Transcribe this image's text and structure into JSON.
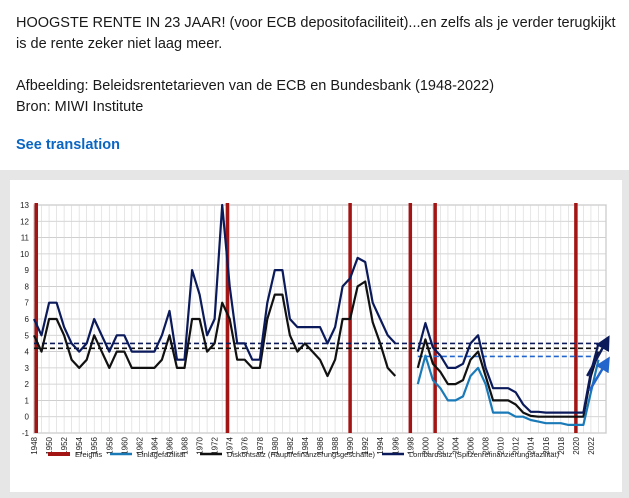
{
  "post": {
    "text": "HOOGSTE RENTE IN 23 JAAR! (voor ECB depositofaciliteit)...en zelfs als je verder terugkijkt is de rente zeker niet laag meer.\n\nAfbeelding: Beleidsrentetarieven van de ECB en Bundesbank (1948-2022)\nBron: MIWI Institute",
    "see_translation": "See translation"
  },
  "chart_data": {
    "type": "line",
    "title": "",
    "xlabel": "",
    "ylabel": "",
    "xlim": [
      1948,
      2024
    ],
    "ylim": [
      -1,
      13
    ],
    "y_ticks": [
      -1,
      0,
      1,
      2,
      3,
      4,
      5,
      6,
      7,
      8,
      9,
      10,
      11,
      12,
      13
    ],
    "x_ticks": [
      1948,
      1950,
      1952,
      1954,
      1956,
      1958,
      1960,
      1962,
      1964,
      1966,
      1968,
      1970,
      1972,
      1974,
      1976,
      1978,
      1980,
      1982,
      1984,
      1986,
      1988,
      1990,
      1992,
      1994,
      1996,
      1998,
      2000,
      2002,
      2004,
      2006,
      2008,
      2010,
      2012,
      2014,
      2016,
      2018,
      2020,
      2022
    ],
    "grid": true,
    "events": [
      1948.3,
      1973.7,
      1990,
      1998,
      2001.3,
      2020
    ],
    "series": [
      {
        "name": "Diskontsatz (Hauptrefinanzerungsgeschäfte)",
        "color": "#111111",
        "x": [
          1948,
          1949,
          1950,
          1951,
          1952,
          1953,
          1954,
          1955,
          1956,
          1957,
          1958,
          1959,
          1960,
          1961,
          1962,
          1963,
          1964,
          1965,
          1966,
          1967,
          1968,
          1969,
          1970,
          1971,
          1972,
          1973,
          1974,
          1975,
          1976,
          1977,
          1978,
          1979,
          1980,
          1981,
          1982,
          1983,
          1984,
          1985,
          1986,
          1987,
          1988,
          1989,
          1990,
          1991,
          1992,
          1993,
          1994,
          1995,
          1996
        ],
        "values": [
          5,
          4,
          6,
          6,
          5,
          3.5,
          3,
          3.5,
          5,
          4,
          3,
          4,
          4,
          3,
          3,
          3,
          3,
          3.5,
          5,
          3,
          3,
          6,
          6,
          4,
          4.5,
          7,
          6,
          3.5,
          3.5,
          3,
          3,
          6,
          7.5,
          7.5,
          5,
          4,
          4.5,
          4,
          3.5,
          2.5,
          3.5,
          6,
          6,
          8,
          8.3,
          5.8,
          4.5,
          3,
          2.5
        ]
      },
      {
        "name": "Diskontsatz (Hauptrefinanzerungsgeschäfte)",
        "color": "#111111",
        "x": [
          1999,
          2000,
          2001,
          2002,
          2003,
          2004,
          2005,
          2006,
          2007,
          2008,
          2009,
          2010,
          2011,
          2012,
          2013,
          2014,
          2015,
          2016,
          2017,
          2018,
          2019,
          2020,
          2021,
          2022,
          2023
        ],
        "values": [
          3,
          4.75,
          3.25,
          2.75,
          2,
          2,
          2.25,
          3.5,
          4,
          2.5,
          1,
          1,
          1,
          0.75,
          0.25,
          0.05,
          0,
          0,
          0,
          0,
          0,
          0,
          0,
          2.5,
          4
        ]
      },
      {
        "name": "Lombardsatz (Spitzenrefinanzierungsfazilität)",
        "color": "#0b1a5a",
        "x": [
          1948,
          1949,
          1950,
          1951,
          1952,
          1953,
          1954,
          1955,
          1956,
          1957,
          1958,
          1959,
          1960,
          1961,
          1962,
          1963,
          1964,
          1965,
          1966,
          1967,
          1968,
          1969,
          1970,
          1971,
          1972,
          1973,
          1974,
          1975,
          1976,
          1977,
          1978,
          1979,
          1980,
          1981,
          1982,
          1983,
          1984,
          1985,
          1986,
          1987,
          1988,
          1989,
          1990,
          1991,
          1992,
          1993,
          1994,
          1995,
          1996
        ],
        "values": [
          6,
          5,
          7,
          7,
          5.5,
          4.5,
          4,
          4.5,
          6,
          5,
          4,
          5,
          5,
          4,
          4,
          4,
          4,
          5,
          6.5,
          3.5,
          3.5,
          9,
          7.5,
          5,
          6,
          13,
          8,
          4.5,
          4.5,
          3.5,
          3.5,
          7,
          9,
          9,
          6,
          5.5,
          5.5,
          5.5,
          5.5,
          4.5,
          5.5,
          8,
          8.5,
          9.75,
          9.5,
          7,
          6,
          5,
          4.5
        ]
      },
      {
        "name": "Lombardsatz (Spitzenrefinanzierungsfazilität)",
        "color": "#0b1a5a",
        "x": [
          1999,
          2000,
          2001,
          2002,
          2003,
          2004,
          2005,
          2006,
          2007,
          2008,
          2009,
          2010,
          2011,
          2012,
          2013,
          2014,
          2015,
          2016,
          2017,
          2018,
          2019,
          2020,
          2021,
          2022,
          2023
        ],
        "values": [
          4,
          5.75,
          4.25,
          3.75,
          3,
          3,
          3.25,
          4.5,
          5,
          3,
          1.75,
          1.75,
          1.75,
          1.5,
          0.75,
          0.3,
          0.3,
          0.25,
          0.25,
          0.25,
          0.25,
          0.25,
          0.25,
          2.75,
          4.5
        ]
      },
      {
        "name": "Einlagefazilität",
        "color": "#1a7ab8",
        "x": [
          1999,
          2000,
          2001,
          2002,
          2003,
          2004,
          2005,
          2006,
          2007,
          2008,
          2009,
          2010,
          2011,
          2012,
          2013,
          2014,
          2015,
          2016,
          2017,
          2018,
          2019,
          2020,
          2021,
          2022,
          2023
        ],
        "values": [
          2,
          3.75,
          2.25,
          1.75,
          1,
          1,
          1.25,
          2.5,
          3,
          2,
          0.25,
          0.25,
          0.25,
          0,
          0,
          -0.2,
          -0.3,
          -0.4,
          -0.4,
          -0.4,
          -0.5,
          -0.5,
          -0.5,
          1.5,
          3.5
        ]
      }
    ],
    "reference_lines": [
      {
        "color": "#111111",
        "x": [
          1948,
          2023
        ],
        "y": 4.2
      },
      {
        "color": "#0b1a5a",
        "x": [
          1948,
          2023
        ],
        "y": 4.5
      },
      {
        "color": "#2266cc",
        "x": [
          1999,
          2023
        ],
        "y": 3.7
      }
    ],
    "legend": [
      {
        "label": "Ereignis",
        "color": "#a31515"
      },
      {
        "label": "Einlagefazilität",
        "color": "#1a7ab8"
      },
      {
        "label": "Diskontsatz (Hauptrefinanzerungsgeschäfte)",
        "color": "#111111"
      },
      {
        "label": "Lombardsatz (Spitzenrefinanzierungsfazilität)",
        "color": "#0b1a5a"
      }
    ],
    "legend_position": "bottom"
  }
}
